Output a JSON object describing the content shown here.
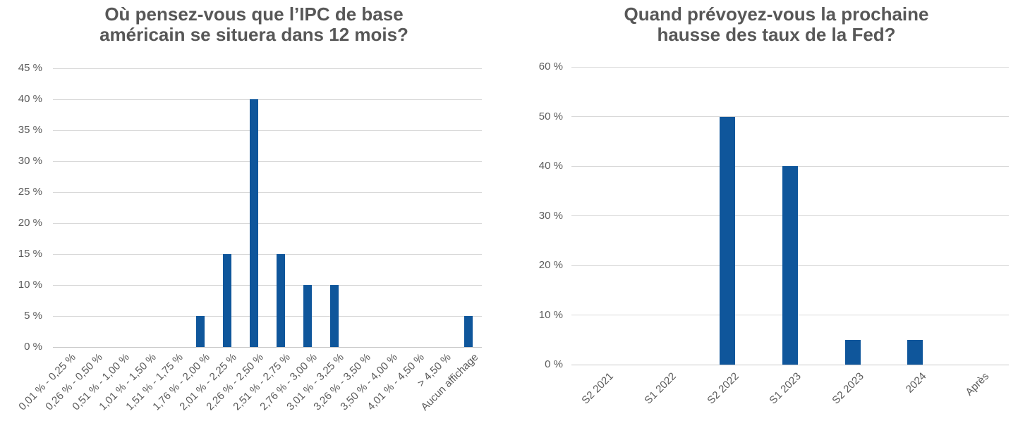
{
  "style": {
    "background": "#FFFFFF",
    "title_color": "#575757",
    "axis_label_color": "#5B5B5B",
    "gridline_color": "#D9D9D9",
    "bar_color": "#0F569B"
  },
  "chart_data": [
    {
      "type": "bar",
      "title": "Où pensez-vous que l’IPC de base américain se situera dans 12 mois?",
      "title_lines": [
        "Où pensez-vous que l’IPC de base",
        "américain se situera dans 12 mois?"
      ],
      "categories": [
        "0,01 % - 0,25 %",
        "0,26 % - 0,50 %",
        "0,51 % - 1,00 %",
        "1,01 % - 1,50 %",
        "1,51 % - 1,75 %",
        "1,76 % - 2,00 %",
        "2,01 % - 2,25 %",
        "2,26 % - 2,50 %",
        "2,51 % - 2,75 %",
        "2,76 % - 3,00 %",
        "3,01 % - 3,25 %",
        "3,26 % - 3,50 %",
        "3,50 % - 4,00 %",
        "4,01 % - 4,50 %",
        "> 4,50 %",
        "Aucun affichage"
      ],
      "values": [
        0,
        0,
        0,
        0,
        0,
        5,
        15,
        40,
        15,
        10,
        10,
        0,
        0,
        0,
        0,
        5
      ],
      "value_unit": "%",
      "xlabel": "",
      "ylabel": "",
      "ylim": [
        0,
        45
      ],
      "ytick_values": [
        0,
        5,
        10,
        15,
        20,
        25,
        30,
        35,
        40,
        45
      ],
      "ytick_labels": [
        "0 %",
        "5 %",
        "10 %",
        "15 %",
        "20 %",
        "25 %",
        "30 %",
        "35 %",
        "40 %",
        "45 %"
      ],
      "grid": "horizontal",
      "legend": "none",
      "bar_color": "#0F569B"
    },
    {
      "type": "bar",
      "title": "Quand prévoyez-vous la prochaine hausse des taux de la Fed?",
      "title_lines": [
        "Quand prévoyez-vous la prochaine",
        "hausse des taux de la Fed?"
      ],
      "categories": [
        "S2 2021",
        "S1 2022",
        "S2 2022",
        "S1 2023",
        "S2 2023",
        "2024",
        "Après"
      ],
      "values": [
        0,
        0,
        50,
        40,
        5,
        5,
        0
      ],
      "value_unit": "%",
      "xlabel": "",
      "ylabel": "",
      "ylim": [
        0,
        60
      ],
      "ytick_values": [
        0,
        10,
        20,
        30,
        40,
        50,
        60
      ],
      "ytick_labels": [
        "0 %",
        "10 %",
        "20 %",
        "30 %",
        "40 %",
        "50 %",
        "60 %"
      ],
      "grid": "horizontal",
      "legend": "none",
      "bar_color": "#0F569B"
    }
  ]
}
